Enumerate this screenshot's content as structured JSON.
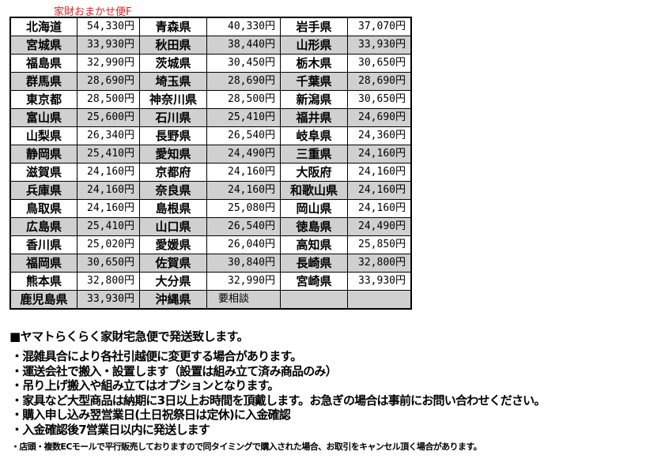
{
  "caption": "家財おまかせ便F",
  "rows": [
    [
      [
        "北海道",
        "54,330円"
      ],
      [
        "青森県",
        "40,330円"
      ],
      [
        "岩手県",
        "37,070円"
      ]
    ],
    [
      [
        "宮城県",
        "33,930円"
      ],
      [
        "秋田県",
        "38,440円"
      ],
      [
        "山形県",
        "33,930円"
      ]
    ],
    [
      [
        "福島県",
        "32,990円"
      ],
      [
        "茨城県",
        "30,450円"
      ],
      [
        "栃木県",
        "30,650円"
      ]
    ],
    [
      [
        "群馬県",
        "28,690円"
      ],
      [
        "埼玉県",
        "28,690円"
      ],
      [
        "千葉県",
        "28,690円"
      ]
    ],
    [
      [
        "東京都",
        "28,500円"
      ],
      [
        "神奈川県",
        "28,500円"
      ],
      [
        "新潟県",
        "30,650円"
      ]
    ],
    [
      [
        "富山県",
        "25,600円"
      ],
      [
        "石川県",
        "25,410円"
      ],
      [
        "福井県",
        "24,690円"
      ]
    ],
    [
      [
        "山梨県",
        "26,340円"
      ],
      [
        "長野県",
        "26,540円"
      ],
      [
        "岐阜県",
        "24,360円"
      ]
    ],
    [
      [
        "静岡県",
        "25,410円"
      ],
      [
        "愛知県",
        "24,490円"
      ],
      [
        "三重県",
        "24,160円"
      ]
    ],
    [
      [
        "滋賀県",
        "24,160円"
      ],
      [
        "京都府",
        "24,160円"
      ],
      [
        "大阪府",
        "24,160円"
      ]
    ],
    [
      [
        "兵庫県",
        "24,160円"
      ],
      [
        "奈良県",
        "24,160円"
      ],
      [
        "和歌山県",
        "24,160円"
      ]
    ],
    [
      [
        "鳥取県",
        "24,160円"
      ],
      [
        "島根県",
        "25,080円"
      ],
      [
        "岡山県",
        "24,160円"
      ]
    ],
    [
      [
        "広島県",
        "25,410円"
      ],
      [
        "山口県",
        "26,540円"
      ],
      [
        "徳島県",
        "24,490円"
      ]
    ],
    [
      [
        "香川県",
        "25,020円"
      ],
      [
        "愛媛県",
        "26,040円"
      ],
      [
        "高知県",
        "25,850円"
      ]
    ],
    [
      [
        "福岡県",
        "30,650円"
      ],
      [
        "佐賀県",
        "30,840円"
      ],
      [
        "長崎県",
        "32,800円"
      ]
    ],
    [
      [
        "熊本県",
        "32,800円"
      ],
      [
        "大分県",
        "32,990円"
      ],
      [
        "宮崎県",
        "33,930円"
      ]
    ],
    [
      [
        "鹿児島県",
        "33,930円"
      ],
      [
        "沖縄県",
        "要相談"
      ],
      [
        "",
        ""
      ]
    ]
  ],
  "shipping_heading": "■ヤマトらくらく家財宅急便で発送致します。",
  "bullets": [
    "・混雑具合により各社引越便に変更する場合があります。",
    "・運送会社で搬入・設置します（設置は組み立て済み商品のみ）",
    "・吊り上げ搬入や組み立てはオプションとなります。",
    "・家具など大型商品は納期に3日以上お時間を頂戴します。お急ぎの場合は事前にお問い合わせください。",
    "・購入申し込み翌営業日(土日祝祭日は定休)に入金確認",
    "・入金確認後7営業日以内に発送します"
  ],
  "footnote": "・店頭・複数ECモールで平行販売しておりますので同タイミングで購入された場合、お取引をキャンセル頂く場合があります。"
}
